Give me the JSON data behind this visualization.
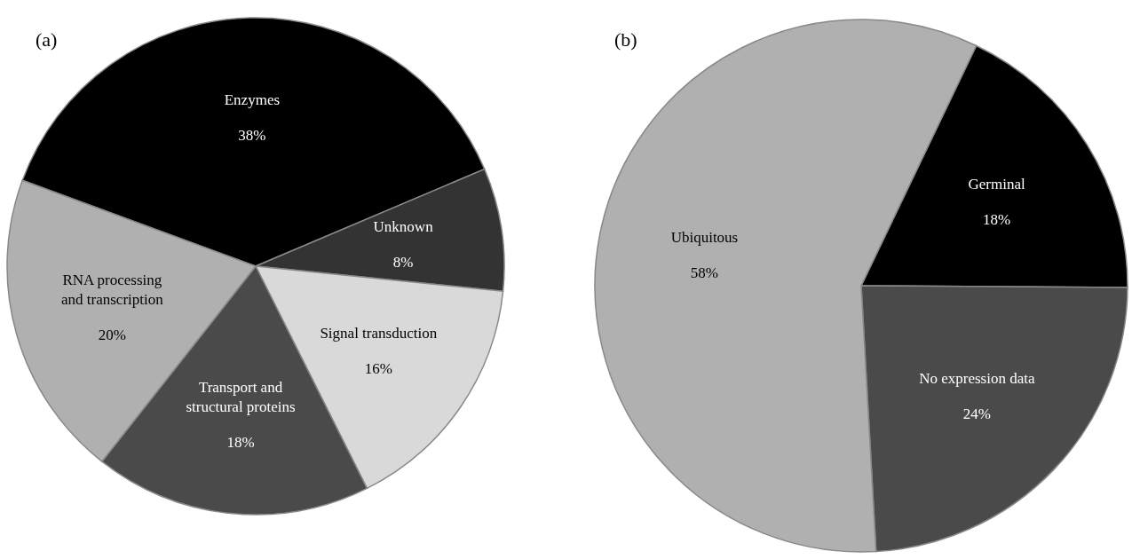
{
  "chart_data": [
    {
      "type": "pie",
      "title": "(a)",
      "categories": [
        "Enzymes",
        "Unknown",
        "Signal transduction",
        "Transport and\nstructural proteins",
        "RNA processing\nand transcription"
      ],
      "values": [
        38,
        8,
        16,
        18,
        20
      ],
      "colors": [
        "#000000",
        "#333333",
        "#d9d9d9",
        "#4a4a4a",
        "#b0b0b0"
      ],
      "value_labels": [
        "38%",
        "8%",
        "16%",
        "18%",
        "20%"
      ]
    },
    {
      "type": "pie",
      "title": "(b)",
      "categories": [
        "Germinal",
        "No expression data",
        "Ubiquitous"
      ],
      "values": [
        18,
        24,
        58
      ],
      "colors": [
        "#000000",
        "#4a4a4a",
        "#b0b0b0"
      ],
      "value_labels": [
        "18%",
        "24%",
        "58%"
      ]
    }
  ]
}
